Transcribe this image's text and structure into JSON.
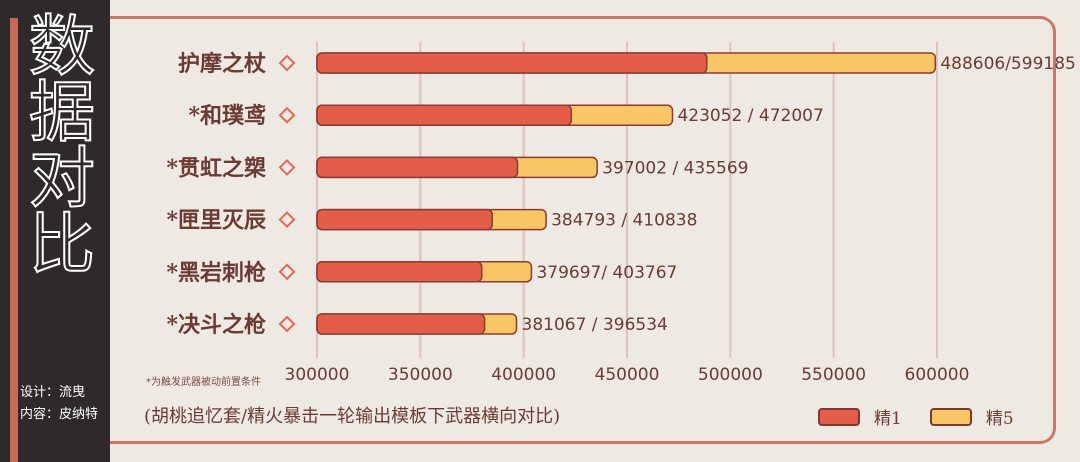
{
  "title_chars": [
    "数",
    "据",
    "对",
    "比"
  ],
  "credits": {
    "design": "设计：流曳",
    "content": "内容：皮纳特"
  },
  "note": "*为触发武器被动前置条件",
  "subtitle": "(胡桃追忆套/精火暴击一轮输出模板下武器横向对比)",
  "colors": {
    "r1": "#e45d48",
    "r5": "#f8c664",
    "stroke": "#8a3c32",
    "text": "#6b3b33",
    "marker": "#e06a55"
  },
  "chart_data": {
    "type": "bar",
    "orientation": "horizontal",
    "stacked_overlay": true,
    "categories": [
      "护摩之杖",
      "*和璞鸢",
      "*贯虹之槊",
      "*匣里灭辰",
      "*黑岩刺枪",
      "*决斗之枪"
    ],
    "series": [
      {
        "name": "精1",
        "values": [
          488606,
          423052,
          397002,
          384793,
          379697,
          381067
        ]
      },
      {
        "name": "精5",
        "values": [
          599185,
          472007,
          435569,
          410838,
          403767,
          396534
        ]
      }
    ],
    "value_labels": [
      "488606/599185",
      "423052 / 472007",
      "397002 / 435569",
      "384793 / 410838",
      "379697/ 403767",
      "381067 / 396534"
    ],
    "x_ticks": [
      "300000",
      "350000",
      "400000",
      "450000",
      "500000",
      "550000",
      "600000"
    ],
    "xlim": [
      300000,
      600000
    ],
    "legend_position": "bottom-right",
    "grid": true
  }
}
